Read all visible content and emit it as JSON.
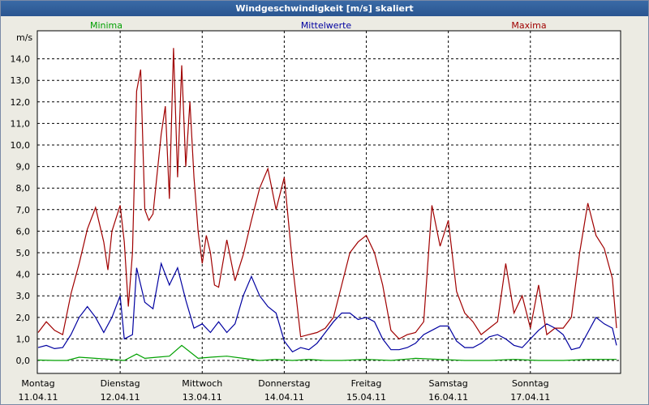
{
  "chart_data": {
    "type": "line",
    "title": "Windgeschwindigkeit [m/s] skaliert",
    "ylabel": "m/s",
    "xlabel": "",
    "ylim": [
      -0.6,
      15.3
    ],
    "yticks": [
      "0,0",
      "1,0",
      "2,0",
      "3,0",
      "4,0",
      "5,0",
      "6,0",
      "7,0",
      "8,0",
      "9,0",
      "10,0",
      "11,0",
      "12,0",
      "13,0",
      "14,0"
    ],
    "ytick_values": [
      0,
      1,
      2,
      3,
      4,
      5,
      6,
      7,
      8,
      9,
      10,
      11,
      12,
      13,
      14
    ],
    "days": [
      {
        "name": "Montag",
        "date": "11.04.11"
      },
      {
        "name": "Dienstag",
        "date": "12.04.11"
      },
      {
        "name": "Mittwoch",
        "date": "13.04.11"
      },
      {
        "name": "Donnerstag",
        "date": "14.04.11"
      },
      {
        "name": "Freitag",
        "date": "15.04.11"
      },
      {
        "name": "Samstag",
        "date": "16.04.11"
      },
      {
        "name": "Sonntag",
        "date": "17.04.11"
      }
    ],
    "xlim_days": [
      0,
      7.08
    ],
    "series": [
      {
        "name": "Minima",
        "color": "#00a000",
        "x": [
          0,
          0.2,
          0.35,
          0.5,
          0.7,
          0.9,
          1.05,
          1.2,
          1.3,
          1.45,
          1.6,
          1.75,
          1.95,
          2.1,
          2.3,
          2.5,
          2.7,
          2.9,
          3.1,
          3.3,
          3.5,
          3.7,
          4.0,
          4.3,
          4.6,
          4.9,
          5.2,
          5.5,
          5.8,
          6.1,
          6.4,
          6.7,
          7.05
        ],
        "values": [
          0.02,
          0.0,
          0.0,
          0.15,
          0.1,
          0.05,
          0.0,
          0.3,
          0.1,
          0.15,
          0.2,
          0.7,
          0.1,
          0.15,
          0.2,
          0.1,
          0.0,
          0.05,
          0.0,
          0.05,
          0.0,
          0.0,
          0.05,
          0.0,
          0.1,
          0.05,
          0.0,
          0.0,
          0.05,
          0.0,
          0.0,
          0.05,
          0.05
        ]
      },
      {
        "name": "Mittelwerte",
        "color": "#0000a0",
        "x": [
          0,
          0.1,
          0.2,
          0.3,
          0.4,
          0.5,
          0.6,
          0.7,
          0.8,
          0.9,
          1.0,
          1.05,
          1.15,
          1.2,
          1.3,
          1.4,
          1.5,
          1.6,
          1.7,
          1.8,
          1.9,
          2.0,
          2.1,
          2.2,
          2.3,
          2.4,
          2.5,
          2.6,
          2.7,
          2.8,
          2.9,
          3.0,
          3.1,
          3.2,
          3.3,
          3.4,
          3.5,
          3.6,
          3.7,
          3.8,
          3.9,
          4.0,
          4.1,
          4.2,
          4.3,
          4.4,
          4.5,
          4.6,
          4.7,
          4.8,
          4.9,
          5.0,
          5.1,
          5.2,
          5.3,
          5.4,
          5.5,
          5.6,
          5.7,
          5.8,
          5.9,
          6.0,
          6.1,
          6.2,
          6.3,
          6.4,
          6.5,
          6.6,
          6.7,
          6.8,
          6.9,
          7.0,
          7.05
        ],
        "values": [
          0.6,
          0.7,
          0.55,
          0.6,
          1.2,
          2.0,
          2.5,
          2.0,
          1.3,
          2.0,
          3.0,
          1.0,
          1.2,
          4.3,
          2.7,
          2.4,
          4.5,
          3.5,
          4.3,
          2.8,
          1.5,
          1.7,
          1.3,
          1.8,
          1.3,
          1.7,
          3.0,
          3.9,
          3.0,
          2.5,
          2.2,
          0.9,
          0.4,
          0.6,
          0.5,
          0.8,
          1.3,
          1.8,
          2.2,
          2.2,
          1.9,
          2.0,
          1.8,
          1.0,
          0.5,
          0.5,
          0.6,
          0.8,
          1.2,
          1.4,
          1.6,
          1.6,
          0.9,
          0.6,
          0.6,
          0.8,
          1.1,
          1.2,
          1.0,
          0.7,
          0.6,
          1.0,
          1.4,
          1.7,
          1.5,
          1.2,
          0.5,
          0.6,
          1.3,
          2.0,
          1.7,
          1.5,
          0.7
        ]
      },
      {
        "name": "Maxima",
        "color": "#a00000",
        "x": [
          0,
          0.1,
          0.2,
          0.3,
          0.4,
          0.5,
          0.6,
          0.7,
          0.8,
          0.85,
          0.9,
          1.0,
          1.05,
          1.1,
          1.15,
          1.2,
          1.25,
          1.3,
          1.35,
          1.4,
          1.5,
          1.55,
          1.6,
          1.65,
          1.7,
          1.75,
          1.8,
          1.85,
          1.9,
          1.95,
          2.0,
          2.05,
          2.1,
          2.15,
          2.2,
          2.3,
          2.4,
          2.5,
          2.6,
          2.7,
          2.8,
          2.9,
          3.0,
          3.1,
          3.2,
          3.3,
          3.4,
          3.5,
          3.6,
          3.7,
          3.8,
          3.9,
          4.0,
          4.1,
          4.2,
          4.3,
          4.4,
          4.5,
          4.6,
          4.7,
          4.8,
          4.9,
          5.0,
          5.1,
          5.2,
          5.3,
          5.4,
          5.5,
          5.6,
          5.7,
          5.8,
          5.9,
          6.0,
          6.1,
          6.2,
          6.3,
          6.4,
          6.5,
          6.6,
          6.7,
          6.8,
          6.9,
          7.0,
          7.05
        ],
        "values": [
          1.3,
          1.8,
          1.4,
          1.2,
          3.1,
          4.5,
          6.1,
          7.1,
          5.5,
          4.2,
          6.0,
          7.2,
          5.5,
          2.5,
          5.0,
          12.5,
          13.5,
          7.0,
          6.5,
          6.8,
          10.5,
          11.8,
          7.5,
          14.5,
          8.5,
          13.7,
          9.0,
          12.0,
          8.5,
          6.0,
          4.5,
          5.8,
          5.0,
          3.5,
          3.4,
          5.6,
          3.7,
          4.9,
          6.5,
          8.0,
          8.9,
          7.0,
          8.5,
          4.5,
          1.1,
          1.2,
          1.3,
          1.5,
          2.0,
          3.5,
          5.0,
          5.5,
          5.8,
          5.0,
          3.5,
          1.4,
          1.0,
          1.2,
          1.3,
          1.8,
          7.2,
          5.3,
          6.5,
          3.2,
          2.2,
          1.8,
          1.2,
          1.5,
          1.8,
          4.5,
          2.2,
          3.0,
          1.5,
          3.5,
          1.2,
          1.5,
          1.5,
          2.0,
          5.0,
          7.3,
          5.8,
          5.2,
          3.8,
          1.5
        ]
      }
    ]
  }
}
